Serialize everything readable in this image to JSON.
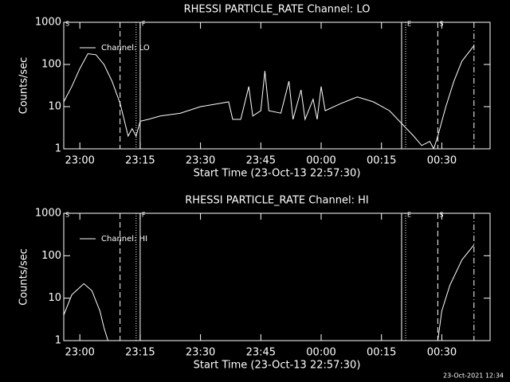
{
  "chart_data": [
    {
      "type": "line",
      "title": "RHESSI PARTICLE_RATE Channel: LO",
      "xlabel": "Start Time (23-Oct-13 22:57:30)",
      "ylabel": "Counts/sec",
      "log_y": true,
      "ylim": [
        1,
        1000
      ],
      "yticks": [
        1,
        10,
        100,
        1000
      ],
      "xlim": [
        "22:56",
        "00:42"
      ],
      "xticks": [
        "23:00",
        "23:15",
        "23:30",
        "23:45",
        "00:00",
        "00:15",
        "00:30"
      ],
      "legend": "upper left",
      "flags": [
        {
          "label": "S",
          "x": "22:56"
        },
        {
          "label": "F",
          "x": "23:15"
        },
        {
          "label": "E",
          "x": "00:21"
        },
        {
          "label": "S",
          "x": "00:29"
        }
      ],
      "lines": [
        {
          "x": "23:10",
          "style": "dashed"
        },
        {
          "x": "23:14",
          "style": "dotted"
        },
        {
          "x": "23:15",
          "style": "solid"
        },
        {
          "x": "00:20",
          "style": "solid"
        },
        {
          "x": "00:21",
          "style": "dotted"
        },
        {
          "x": "00:29",
          "style": "dashed"
        },
        {
          "x": "00:38",
          "style": "dashdot"
        }
      ],
      "x": [
        "22:56",
        "22:58",
        "23:00",
        "23:02",
        "23:04",
        "23:06",
        "23:08",
        "23:10",
        "23:11",
        "23:12",
        "23:13",
        "23:14",
        "23:15",
        "23:17",
        "23:20",
        "23:25",
        "23:30",
        "23:35",
        "23:37",
        "23:38",
        "23:40",
        "23:42",
        "23:43",
        "23:45",
        "23:46",
        "23:47",
        "23:50",
        "23:52",
        "23:53",
        "23:55",
        "23:56",
        "23:58",
        "23:59",
        "00:00",
        "00:01",
        "00:05",
        "00:09",
        "00:13",
        "00:17",
        "00:20",
        "00:23",
        "00:25",
        "00:27",
        "00:28",
        "00:29",
        "00:31",
        "00:33",
        "00:35",
        "00:38"
      ],
      "series": [
        {
          "name": "Channel: LO",
          "color": "#ffffff",
          "values": [
            13,
            30,
            80,
            180,
            170,
            100,
            40,
            12,
            5,
            2,
            3,
            2,
            4.5,
            5,
            6,
            7,
            10,
            12,
            13,
            5,
            5,
            30,
            6,
            8,
            70,
            8,
            7,
            40,
            5,
            25,
            5,
            15,
            5,
            30,
            8,
            12,
            17,
            13,
            8,
            4,
            2,
            1.2,
            1.5,
            1,
            2,
            10,
            40,
            120,
            280
          ]
        }
      ]
    },
    {
      "type": "line",
      "title": "RHESSI PARTICLE_RATE Channel: HI",
      "xlabel": "Start Time (23-Oct-13 22:57:30)",
      "ylabel": "Counts/sec",
      "log_y": true,
      "ylim": [
        1,
        1000
      ],
      "yticks": [
        1,
        10,
        100,
        1000
      ],
      "xlim": [
        "22:56",
        "00:42"
      ],
      "xticks": [
        "23:00",
        "23:15",
        "23:30",
        "23:45",
        "00:00",
        "00:15",
        "00:30"
      ],
      "legend": "upper left",
      "flags": [
        {
          "label": "S",
          "x": "22:56"
        },
        {
          "label": "F",
          "x": "23:15"
        },
        {
          "label": "E",
          "x": "00:21"
        },
        {
          "label": "S",
          "x": "00:29"
        }
      ],
      "lines": [
        {
          "x": "23:10",
          "style": "dashed"
        },
        {
          "x": "23:14",
          "style": "dotted"
        },
        {
          "x": "23:15",
          "style": "solid"
        },
        {
          "x": "00:20",
          "style": "solid"
        },
        {
          "x": "00:21",
          "style": "dotted"
        },
        {
          "x": "00:29",
          "style": "dashed"
        },
        {
          "x": "00:38",
          "style": "dashdot"
        }
      ],
      "x": [
        "22:56",
        "22:58",
        "23:00",
        "23:01",
        "23:03",
        "23:05",
        "23:06",
        "23:07",
        "23:30",
        "00:29",
        "00:30",
        "00:32",
        "00:35",
        "00:38"
      ],
      "series": [
        {
          "name": "Channel: HI",
          "color": "#ffffff",
          "values": [
            4,
            12,
            18,
            22,
            15,
            5,
            2,
            1,
            null,
            1,
            5,
            20,
            80,
            180
          ]
        }
      ]
    }
  ],
  "footer": "23-Oct-2021 12:34"
}
